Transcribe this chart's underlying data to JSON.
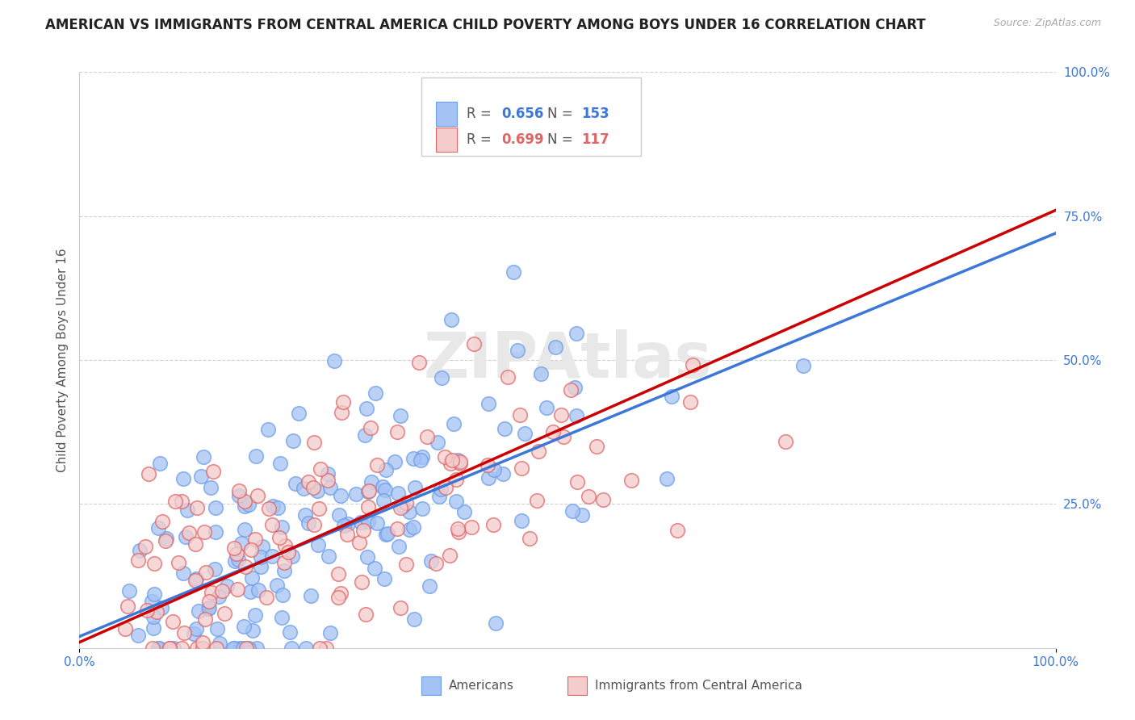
{
  "title": "AMERICAN VS IMMIGRANTS FROM CENTRAL AMERICA CHILD POVERTY AMONG BOYS UNDER 16 CORRELATION CHART",
  "source": "Source: ZipAtlas.com",
  "ylabel": "Child Poverty Among Boys Under 16",
  "xlim": [
    0.0,
    1.0
  ],
  "ylim": [
    0.0,
    1.0
  ],
  "legend1_label_r": "R = ",
  "legend1_r_val": "0.656",
  "legend1_n_label": "  N = ",
  "legend1_n_val": "153",
  "legend2_label_r": "R = ",
  "legend2_r_val": "0.699",
  "legend2_n_label": "  N = ",
  "legend2_n_val": "117",
  "legend_bottom_label1": "Americans",
  "legend_bottom_label2": "Immigrants from Central America",
  "blue_color": "#a4c2f4",
  "pink_color": "#f4cccc",
  "blue_edge_color": "#6d9eeb",
  "pink_edge_color": "#e06666",
  "blue_line_color": "#3c78d8",
  "pink_line_color": "#cc0000",
  "watermark": "ZIPAtlas",
  "title_fontsize": 12,
  "axis_label_fontsize": 11,
  "tick_fontsize": 11,
  "background_color": "#ffffff",
  "seed": 42,
  "n_blue": 153,
  "n_pink": 117,
  "blue_R": 0.656,
  "pink_R": 0.699,
  "blue_line_start_x": 0.0,
  "blue_line_start_y": 0.02,
  "blue_line_end_x": 1.0,
  "blue_line_end_y": 0.72,
  "pink_line_start_x": 0.0,
  "pink_line_start_y": 0.01,
  "pink_line_end_x": 1.0,
  "pink_line_end_y": 0.76
}
